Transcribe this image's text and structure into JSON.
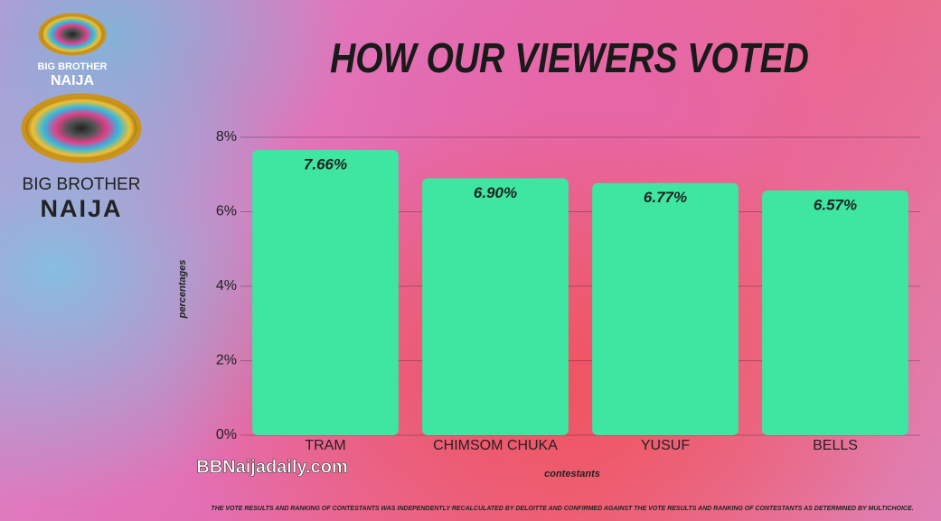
{
  "chart_data": {
    "type": "bar",
    "title": "HOW OUR VIEWERS VOTED",
    "categories": [
      "TRAM",
      "CHIMSOM CHUKA",
      "YUSUF",
      "BELLS"
    ],
    "values": [
      7.66,
      6.9,
      6.77,
      6.57
    ],
    "value_labels": [
      "7.66%",
      "6.90%",
      "6.77%",
      "6.57%"
    ],
    "color": "#3ee6a2",
    "ylim": [
      0,
      8
    ],
    "yticks": [
      {
        "value": 0,
        "label": "0%"
      },
      {
        "value": 2,
        "label": "2%"
      },
      {
        "value": 4,
        "label": "4%"
      },
      {
        "value": 6,
        "label": "6%"
      },
      {
        "value": 8,
        "label": "8%"
      }
    ],
    "grid": true,
    "y_label": "percentages",
    "x_label": "contestants",
    "footnote": "THE VOTE RESULTS AND RANKING OF CONTESTANTS WAS INDEPENDENTLY RECALCULATED BY DELOITTE AND CONFIRMED AGAINST THE VOTE RESULTS AND RANKING OF CONTESTANTS AS DETERMINED BY MULTICHOICE."
  },
  "logos": [
    {
      "line1": "BIG BROTHER",
      "line2": "NAIJA"
    },
    {
      "line1": "BIG BROTHER",
      "line2": "NAIJA"
    }
  ],
  "watermark": "BBNaijadaily.com"
}
